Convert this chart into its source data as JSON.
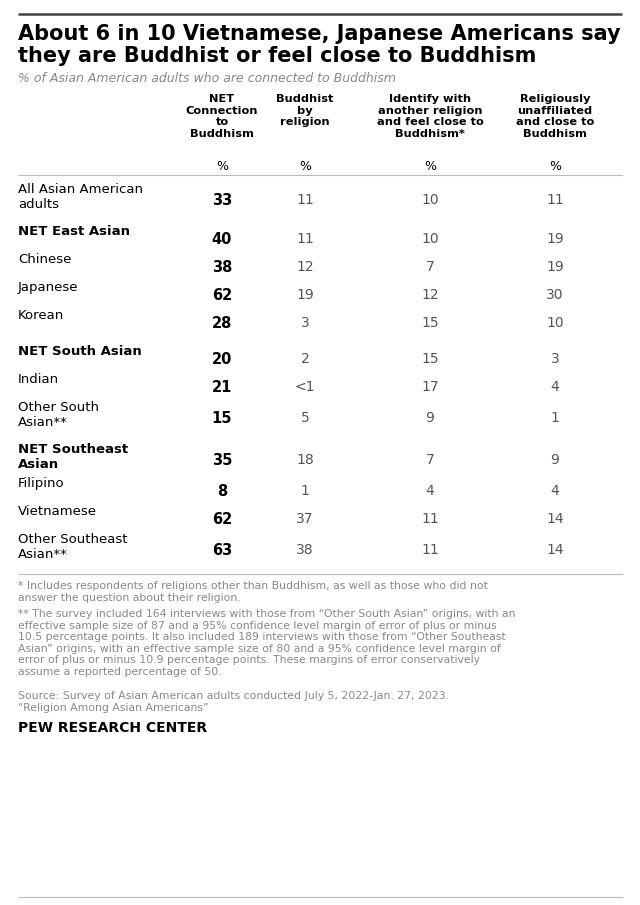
{
  "title_line1": "About 6 in 10 Vietnamese, Japanese Americans say",
  "title_line2": "they are Buddhist or feel close to Buddhism",
  "subtitle": "% of Asian American adults who are connected to Buddhism",
  "col_headers": [
    "NET\nConnection\nto\nBuddhism",
    "Buddhist\nby\nreligion",
    "Identify with\nanother religion\nand feel close to\nBuddhism*",
    "Religiously\nunaffiliated\nand close to\nBuddhism"
  ],
  "col_unit": "%",
  "rows": [
    {
      "label": "All Asian American\nadults",
      "bold_label": false,
      "values": [
        "33",
        "11",
        "10",
        "11"
      ]
    },
    {
      "label": "NET East Asian",
      "bold_label": true,
      "values": [
        "40",
        "11",
        "10",
        "19"
      ]
    },
    {
      "label": "Chinese",
      "bold_label": false,
      "values": [
        "38",
        "12",
        "7",
        "19"
      ]
    },
    {
      "label": "Japanese",
      "bold_label": false,
      "values": [
        "62",
        "19",
        "12",
        "30"
      ]
    },
    {
      "label": "Korean",
      "bold_label": false,
      "values": [
        "28",
        "3",
        "15",
        "10"
      ]
    },
    {
      "label": "NET South Asian",
      "bold_label": true,
      "values": [
        "20",
        "2",
        "15",
        "3"
      ]
    },
    {
      "label": "Indian",
      "bold_label": false,
      "values": [
        "21",
        "<1",
        "17",
        "4"
      ]
    },
    {
      "label": "Other South\nAsian**",
      "bold_label": false,
      "values": [
        "15",
        "5",
        "9",
        "1"
      ]
    },
    {
      "label": "NET Southeast\nAsian",
      "bold_label": true,
      "values": [
        "35",
        "18",
        "7",
        "9"
      ]
    },
    {
      "label": "Filipino",
      "bold_label": false,
      "values": [
        "8",
        "1",
        "4",
        "4"
      ]
    },
    {
      "label": "Vietnamese",
      "bold_label": false,
      "values": [
        "62",
        "37",
        "11",
        "14"
      ]
    },
    {
      "label": "Other Southeast\nAsian**",
      "bold_label": false,
      "values": [
        "63",
        "38",
        "11",
        "14"
      ]
    }
  ],
  "footnote1": "* Includes respondents of religions other than Buddhism, as well as those who did not\nanswer the question about their religion.",
  "footnote2": "** The survey included 164 interviews with those from “Other South Asian” origins, with an\neffective sample size of 87 and a 95% confidence level margin of error of plus or minus\n10.5 percentage points. It also included 189 interviews with those from “Other Southeast\nAsian” origins, with an effective sample size of 80 and a 95% confidence level margin of\nerror of plus or minus 10.9 percentage points. These margins of error conservatively\nassume a reported percentage of 50.",
  "source": "Source: Survey of Asian American adults conducted July 5, 2022-Jan. 27, 2023.\n“Religion Among Asian Americans”",
  "branding": "PEW RESEARCH CENTER",
  "bg_color": "#ffffff",
  "title_color": "#000000",
  "subtitle_color": "#888888",
  "header_color": "#000000",
  "net_value_color": "#000000",
  "value_color": "#555555",
  "footnote_color": "#888888",
  "branding_color": "#000000",
  "separator_color": "#bbbbbb",
  "top_line_color": "#444444"
}
